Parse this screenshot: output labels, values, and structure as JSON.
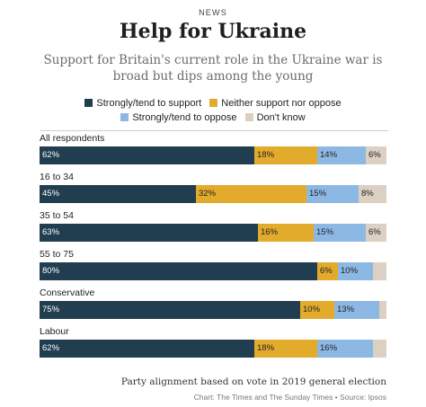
{
  "header": {
    "kicker": "NEWS",
    "title": "Help for Ukraine",
    "subtitle": "Support for Britain's current role in the Ukraine war is broad but dips among the young"
  },
  "chart_data": {
    "type": "bar",
    "orientation": "horizontal",
    "stacked": true,
    "normalized_percent": true,
    "legend_position": "top",
    "grid": false,
    "categories": [
      "All respondents",
      "16 to 34",
      "35 to 54",
      "55 to 75",
      "Conservative",
      "Labour"
    ],
    "series": [
      {
        "name": "Strongly/tend to support",
        "color": "#213d50",
        "values": [
          62,
          45,
          63,
          80,
          75,
          62
        ],
        "labels": [
          "62%",
          "45%",
          "63%",
          "80%",
          "75%",
          "62%"
        ]
      },
      {
        "name": "Neither support nor oppose",
        "color": "#e3ab2c",
        "values": [
          18,
          32,
          16,
          6,
          10,
          18
        ],
        "labels": [
          "18%",
          "32%",
          "16%",
          "6%",
          "10%",
          "18%"
        ]
      },
      {
        "name": "Strongly/tend to oppose",
        "color": "#8db8e3",
        "values": [
          14,
          15,
          15,
          10,
          13,
          16
        ],
        "labels": [
          "14%",
          "15%",
          "15%",
          "10%",
          "13%",
          "16%"
        ]
      },
      {
        "name": "Don't know",
        "color": "#dcd0c3",
        "values": [
          6,
          8,
          6,
          4,
          2,
          4
        ],
        "labels": [
          "6%",
          "8%",
          "6%",
          "",
          "",
          ""
        ]
      }
    ]
  },
  "footer": {
    "note": "Party alignment based on vote in 2019 general election",
    "source": "Chart: The Times and The Sunday Times • Source: Ipsos"
  }
}
